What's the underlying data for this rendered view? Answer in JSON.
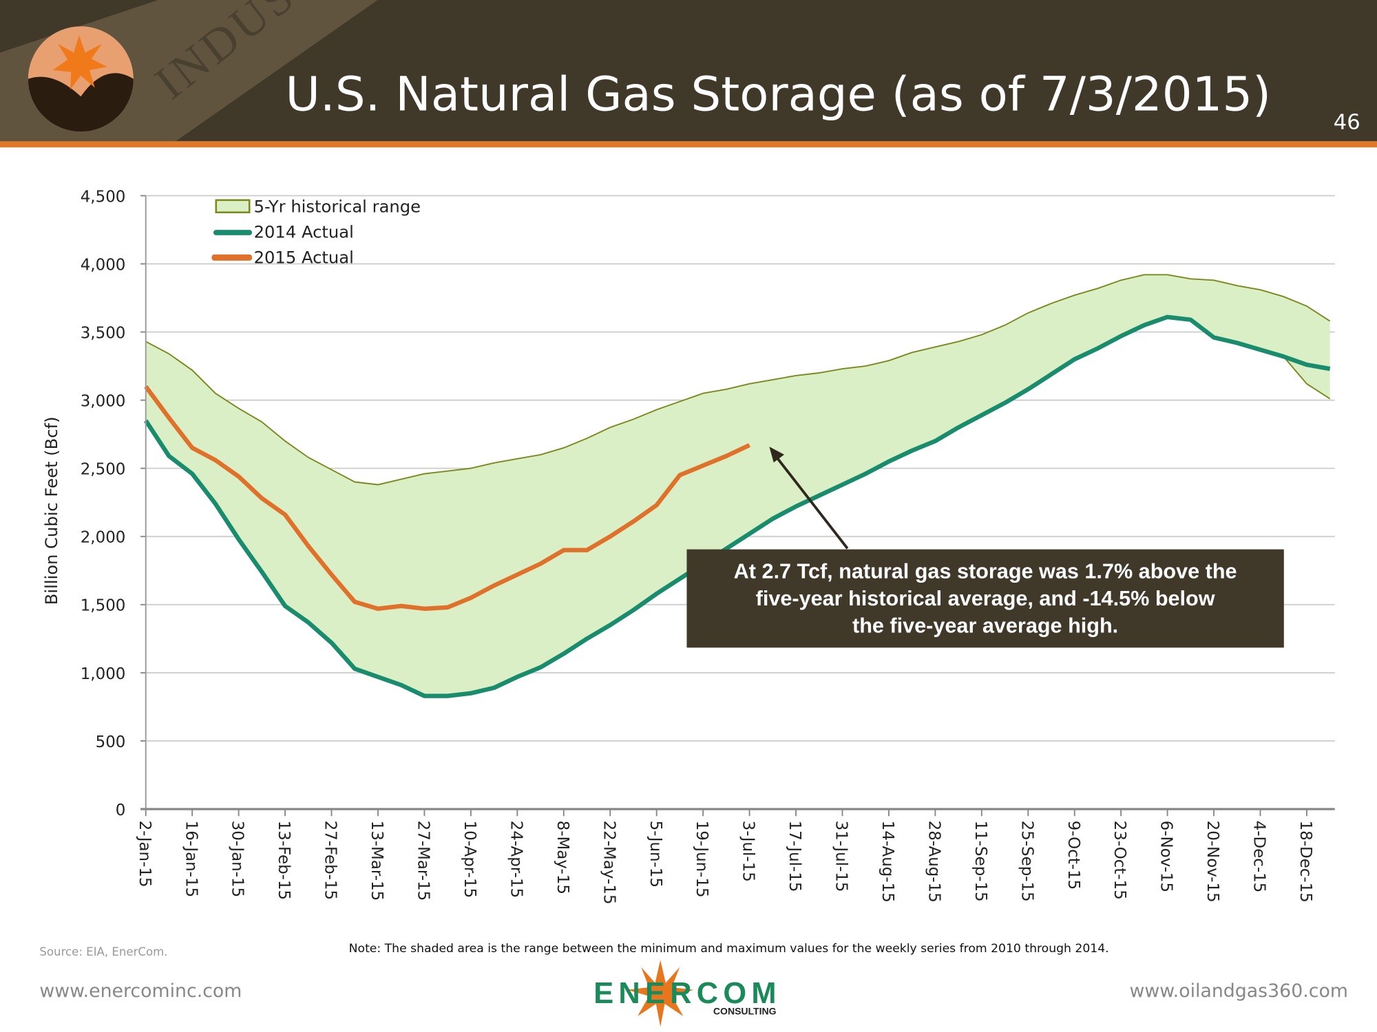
{
  "header": {
    "title": "U.S. Natural Gas Storage (as of 7/3/2015)",
    "slide_number": "46",
    "banner_word": "INDUSTRY"
  },
  "colors": {
    "header_bg": "#403829",
    "accent_orange": "#e07828",
    "series_2014": "#1a8c6e",
    "series_2015": "#e0712b",
    "range_fill": "#dbefc7",
    "range_stroke": "#7a8a1a",
    "callout_bg": "#403829"
  },
  "callout": {
    "lines": [
      "At 2.7 Tcf, natural gas storage was 1.7% above the",
      "five-year historical average, and  -14.5% below",
      "the five-year average high."
    ]
  },
  "footer": {
    "source": "Source: EIA, EnerCom.",
    "note": "Note: The shaded area is the range between the minimum and maximum values for the weekly series from 2010 through 2014.",
    "left_url": "www.enercominc.com",
    "right_url": "www.oilandgas360.com",
    "logo_text": "ENERCOM",
    "logo_sub": "CONSULTING"
  },
  "chart_data": {
    "type": "area",
    "title": "",
    "ylabel": "Billion Cubic Feet (Bcf)",
    "xlabel": "",
    "ylim": [
      0,
      4500
    ],
    "yticks": [
      0,
      500,
      1000,
      1500,
      2000,
      2500,
      3000,
      3500,
      4000,
      4500
    ],
    "ytick_labels": [
      "0",
      "500",
      "1,000",
      "1,500",
      "2,000",
      "2,500",
      "3,000",
      "3,500",
      "4,000",
      "4,500"
    ],
    "grid": "horizontal",
    "legend_placement": "top-left",
    "x_tick_labels": [
      "2-Jan-15",
      "16-Jan-15",
      "30-Jan-15",
      "13-Feb-15",
      "27-Feb-15",
      "13-Mar-15",
      "27-Mar-15",
      "10-Apr-15",
      "24-Apr-15",
      "8-May-15",
      "22-May-15",
      "5-Jun-15",
      "19-Jun-15",
      "3-Jul-15",
      "17-Jul-15",
      "31-Jul-15",
      "14-Aug-15",
      "28-Aug-15",
      "11-Sep-15",
      "25-Sep-15",
      "9-Oct-15",
      "23-Oct-15",
      "6-Nov-15",
      "20-Nov-15",
      "4-Dec-15",
      "18-Dec-15"
    ],
    "x_frequency": "weekly",
    "series": [
      {
        "name": "5-Yr historical range",
        "kind": "range",
        "max": [
          3430,
          3340,
          3220,
          3050,
          2940,
          2840,
          2700,
          2580,
          2490,
          2400,
          2380,
          2420,
          2460,
          2480,
          2500,
          2540,
          2570,
          2600,
          2650,
          2720,
          2800,
          2860,
          2930,
          2990,
          3050,
          3080,
          3120,
          3150,
          3180,
          3200,
          3230,
          3250,
          3290,
          3350,
          3390,
          3430,
          3480,
          3550,
          3640,
          3710,
          3770,
          3820,
          3880,
          3920,
          3920,
          3890,
          3880,
          3840,
          3810,
          3760,
          3690,
          3580
        ],
        "min": [
          2850,
          2590,
          2460,
          2240,
          1980,
          1740,
          1490,
          1370,
          1220,
          1030,
          970,
          910,
          830,
          830,
          850,
          890,
          970,
          1040,
          1140,
          1250,
          1350,
          1460,
          1580,
          1690,
          1800,
          1910,
          2020,
          2130,
          2220,
          2300,
          2380,
          2460,
          2550,
          2630,
          2700,
          2800,
          2890,
          2980,
          3080,
          3190,
          3300,
          3380,
          3470,
          3550,
          3610,
          3590,
          3460,
          3420,
          3370,
          3320,
          3120,
          3010
        ]
      },
      {
        "name": "2014 Actual",
        "kind": "line",
        "values": [
          2850,
          2590,
          2460,
          2240,
          1980,
          1740,
          1490,
          1370,
          1220,
          1030,
          970,
          910,
          830,
          830,
          850,
          890,
          970,
          1040,
          1140,
          1250,
          1350,
          1460,
          1580,
          1690,
          1800,
          1910,
          2020,
          2130,
          2220,
          2300,
          2380,
          2460,
          2550,
          2630,
          2700,
          2800,
          2890,
          2980,
          3080,
          3190,
          3300,
          3380,
          3470,
          3550,
          3610,
          3590,
          3460,
          3420,
          3370,
          3320,
          3260,
          3230
        ]
      },
      {
        "name": "2015 Actual",
        "kind": "line",
        "values": [
          3100,
          2870,
          2650,
          2560,
          2440,
          2280,
          2160,
          1930,
          1720,
          1520,
          1470,
          1490,
          1470,
          1480,
          1550,
          1640,
          1720,
          1800,
          1900,
          1900,
          2000,
          2110,
          2230,
          2450,
          2520,
          2590,
          2670
        ]
      }
    ]
  }
}
